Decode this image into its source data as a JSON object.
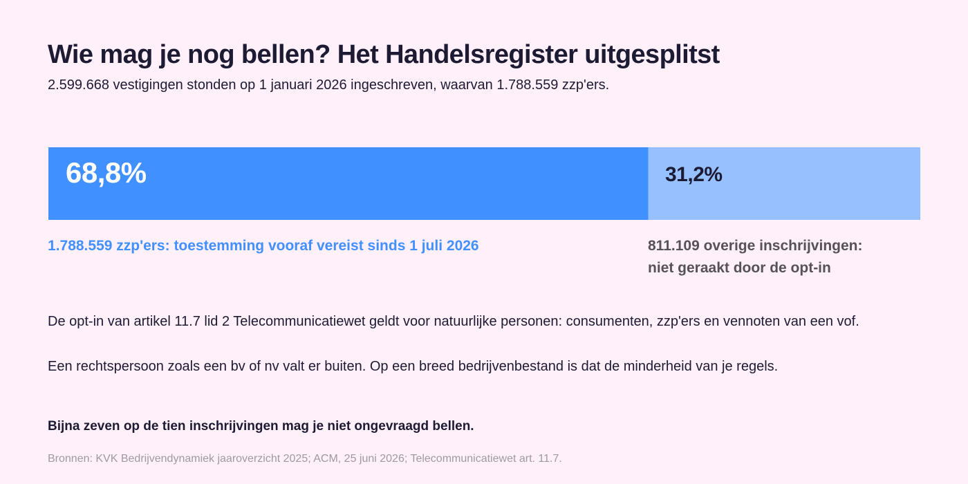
{
  "title": "Wie mag je nog bellen? Het Handelsregister uitgesplitst",
  "subtitle": "2.599.668 vestigingen stonden op 1 januari 2026 ingeschreven, waarvan 1.788.559 zzp'ers.",
  "chart_data": {
    "type": "bar",
    "orientation": "horizontal",
    "stacked": true,
    "total": 2599668,
    "segments": [
      {
        "value": 1788559,
        "percent": 68.8,
        "percent_label": "68,8%",
        "caption_lines": [
          "1.788.559 zzp'ers: toestemming vooraf vereist sinds 1 juli 2026"
        ],
        "color": "#4190ff"
      },
      {
        "value": 811109,
        "percent": 31.2,
        "percent_label": "31,2%",
        "caption_lines": [
          "811.109 overige inschrijvingen:",
          "niet geraakt door de opt-in"
        ],
        "color": "#96c0ff"
      }
    ],
    "grid": false,
    "legend": "none"
  },
  "paragraphs": [
    "De opt-in van artikel 11.7 lid 2 Telecommunicatiewet geldt voor natuurlijke personen: consumenten, zzp'ers en vennoten van een vof.",
    "Een rechtspersoon zoals een bv of nv valt er buiten. Op een breed bedrijvenbestand is dat de minderheid van je regels."
  ],
  "conclusion": "Bijna zeven op de tien inschrijvingen mag je niet ongevraagd bellen.",
  "sources": "Bronnen: KVK Bedrijvendynamiek jaaroverzicht 2025; ACM, 25 juni 2026; Telecommunicatiewet art. 11.7."
}
